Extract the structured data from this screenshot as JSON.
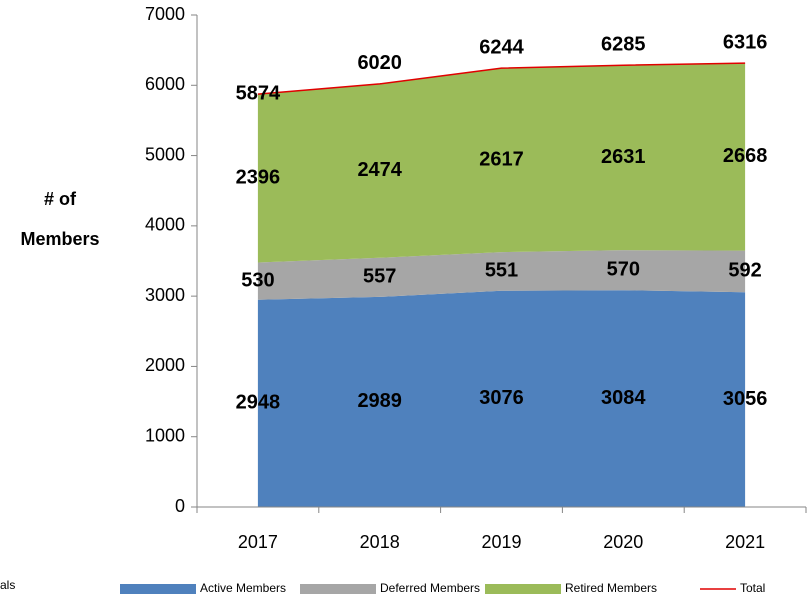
{
  "chart_data": {
    "type": "stacked_area",
    "y_axis_label": [
      "# of",
      "Members"
    ],
    "categories": [
      "2017",
      "2018",
      "2019",
      "2020",
      "2021"
    ],
    "series": [
      {
        "name": "Active Members",
        "color": "#4f81bd",
        "values": [
          2948,
          2989,
          3076,
          3084,
          3056
        ]
      },
      {
        "name": "Deferred Members",
        "color": "#a6a6a6",
        "values": [
          530,
          557,
          551,
          570,
          592
        ]
      },
      {
        "name": "Retired Members",
        "color": "#9bbb59",
        "values": [
          2396,
          2474,
          2617,
          2631,
          2668
        ]
      }
    ],
    "total": {
      "name": "Total",
      "color": "#e00000",
      "values": [
        5874,
        6020,
        6244,
        6285,
        6316
      ]
    },
    "ylim": [
      0,
      7000
    ],
    "yticks": [
      0,
      1000,
      2000,
      3000,
      4000,
      5000,
      6000,
      7000
    ],
    "grid": false,
    "legend": "bottom",
    "cut_off_text": "als"
  }
}
